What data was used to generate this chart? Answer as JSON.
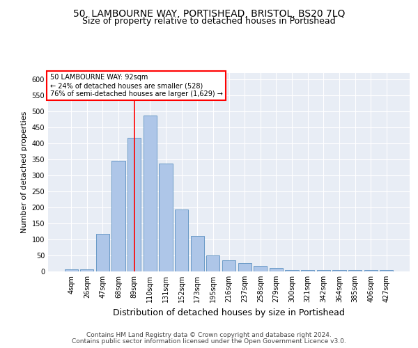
{
  "title1": "50, LAMBOURNE WAY, PORTISHEAD, BRISTOL, BS20 7LQ",
  "title2": "Size of property relative to detached houses in Portishead",
  "xlabel": "Distribution of detached houses by size in Portishead",
  "ylabel": "Number of detached properties",
  "categories": [
    "4sqm",
    "26sqm",
    "47sqm",
    "68sqm",
    "89sqm",
    "110sqm",
    "131sqm",
    "152sqm",
    "173sqm",
    "195sqm",
    "216sqm",
    "237sqm",
    "258sqm",
    "279sqm",
    "300sqm",
    "321sqm",
    "342sqm",
    "364sqm",
    "385sqm",
    "406sqm",
    "427sqm"
  ],
  "values": [
    6,
    7,
    118,
    346,
    417,
    487,
    337,
    193,
    112,
    50,
    35,
    27,
    18,
    10,
    4,
    5,
    4,
    4,
    5,
    4,
    4
  ],
  "bar_color": "#aec6e8",
  "bar_edge_color": "#5a8fc0",
  "background_color": "#e8edf5",
  "vline_x_index": 4,
  "vline_color": "red",
  "annotation_text": "50 LAMBOURNE WAY: 92sqm\n← 24% of detached houses are smaller (528)\n76% of semi-detached houses are larger (1,629) →",
  "annotation_box_color": "white",
  "annotation_box_edge": "red",
  "ylim": [
    0,
    620
  ],
  "yticks": [
    0,
    50,
    100,
    150,
    200,
    250,
    300,
    350,
    400,
    450,
    500,
    550,
    600
  ],
  "footer1": "Contains HM Land Registry data © Crown copyright and database right 2024.",
  "footer2": "Contains public sector information licensed under the Open Government Licence v3.0.",
  "title1_fontsize": 10,
  "title2_fontsize": 9,
  "xlabel_fontsize": 9,
  "ylabel_fontsize": 8,
  "tick_fontsize": 7,
  "footer_fontsize": 6.5,
  "annotation_fontsize": 7
}
